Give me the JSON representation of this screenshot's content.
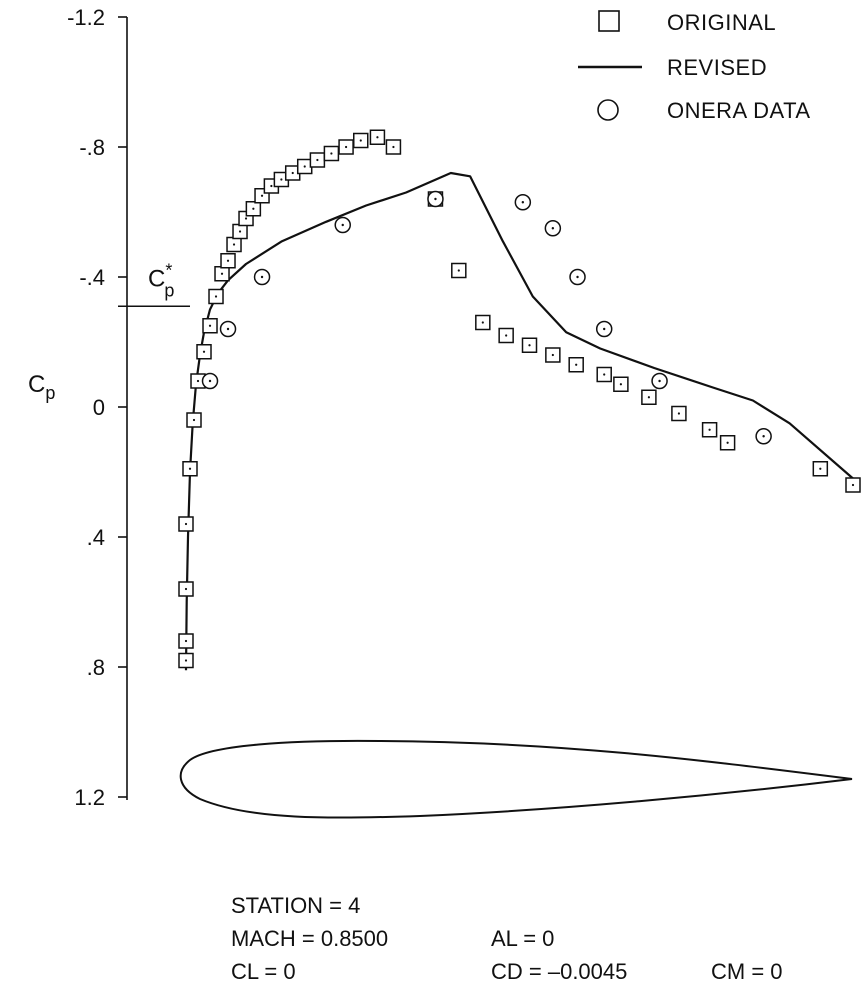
{
  "chart_data": {
    "type": "scatter",
    "title": "",
    "xlabel": "",
    "ylabel": "Cp",
    "ylabel_sub": "p",
    "ylabel_main": "C",
    "ylim": [
      -1.2,
      1.2
    ],
    "y_inverted": true,
    "xlim": [
      0,
      1
    ],
    "x_axis_visible": false,
    "yticks": [
      -1.2,
      -0.8,
      -0.4,
      0,
      0.4,
      0.8,
      1.2
    ],
    "ytick_labels": [
      "-1.2",
      "-.8",
      "-.4",
      "0",
      ".4",
      ".8",
      "1.2"
    ],
    "grid": false,
    "legend_position": "top-right",
    "cp_star": {
      "label_main": "C",
      "label_sup": "*",
      "label_sub": "p",
      "value": -0.31
    },
    "series": [
      {
        "name": "ORIGINAL",
        "marker": "square",
        "x": [
          0.0,
          0.0,
          0.0,
          0.0,
          0.006,
          0.012,
          0.018,
          0.027,
          0.036,
          0.045,
          0.054,
          0.063,
          0.072,
          0.081,
          0.09,
          0.101,
          0.114,
          0.128,
          0.143,
          0.16,
          0.178,
          0.197,
          0.218,
          0.24,
          0.262,
          0.287,
          0.311,
          0.374,
          0.409,
          0.445,
          0.48,
          0.515,
          0.55,
          0.585,
          0.627,
          0.652,
          0.694,
          0.739,
          0.785,
          0.812,
          0.951,
          1.0
        ],
        "y": [
          0.78,
          0.72,
          0.56,
          0.36,
          0.19,
          0.04,
          -0.08,
          -0.17,
          -0.25,
          -0.34,
          -0.41,
          -0.45,
          -0.5,
          -0.54,
          -0.58,
          -0.61,
          -0.65,
          -0.68,
          -0.7,
          -0.72,
          -0.74,
          -0.76,
          -0.78,
          -0.8,
          -0.82,
          -0.83,
          -0.8,
          -0.64,
          -0.42,
          -0.26,
          -0.22,
          -0.19,
          -0.16,
          -0.13,
          -0.1,
          -0.07,
          -0.03,
          0.02,
          0.07,
          0.11,
          0.19,
          0.24
        ]
      },
      {
        "name": "REVISED",
        "marker": "line",
        "x": [
          0.0,
          0.001,
          0.003,
          0.006,
          0.01,
          0.015,
          0.021,
          0.027,
          0.036,
          0.048,
          0.063,
          0.09,
          0.144,
          0.21,
          0.27,
          0.33,
          0.397,
          0.426,
          0.475,
          0.52,
          0.57,
          0.621,
          0.702,
          0.79,
          0.85,
          0.905,
          1.0
        ],
        "y": [
          0.81,
          0.6,
          0.4,
          0.2,
          0.05,
          -0.07,
          -0.16,
          -0.23,
          -0.3,
          -0.35,
          -0.39,
          -0.44,
          -0.51,
          -0.57,
          -0.62,
          -0.66,
          -0.72,
          -0.71,
          -0.51,
          -0.34,
          -0.23,
          -0.18,
          -0.12,
          -0.06,
          -0.02,
          0.05,
          0.22
        ]
      },
      {
        "name": "ONERA DATA",
        "marker": "circle-dot",
        "x": [
          0.036,
          0.063,
          0.114,
          0.235,
          0.374,
          0.505,
          0.55,
          0.587,
          0.627,
          0.71,
          0.866
        ],
        "y": [
          -0.08,
          -0.24,
          -0.4,
          -0.56,
          -0.64,
          -0.63,
          -0.55,
          -0.4,
          -0.24,
          -0.08,
          0.09
        ]
      }
    ],
    "annotations": [
      "STATION = 4",
      "MACH = 0.8500",
      "AL = 0",
      "CL = 0",
      "CD = –0.0045",
      "CM = 0"
    ]
  },
  "info": {
    "station": "STATION = 4",
    "mach": "MACH = 0.8500",
    "al": "AL = 0",
    "cl": "CL = 0",
    "cd": "CD = –0.0045",
    "cm": "CM = 0"
  }
}
